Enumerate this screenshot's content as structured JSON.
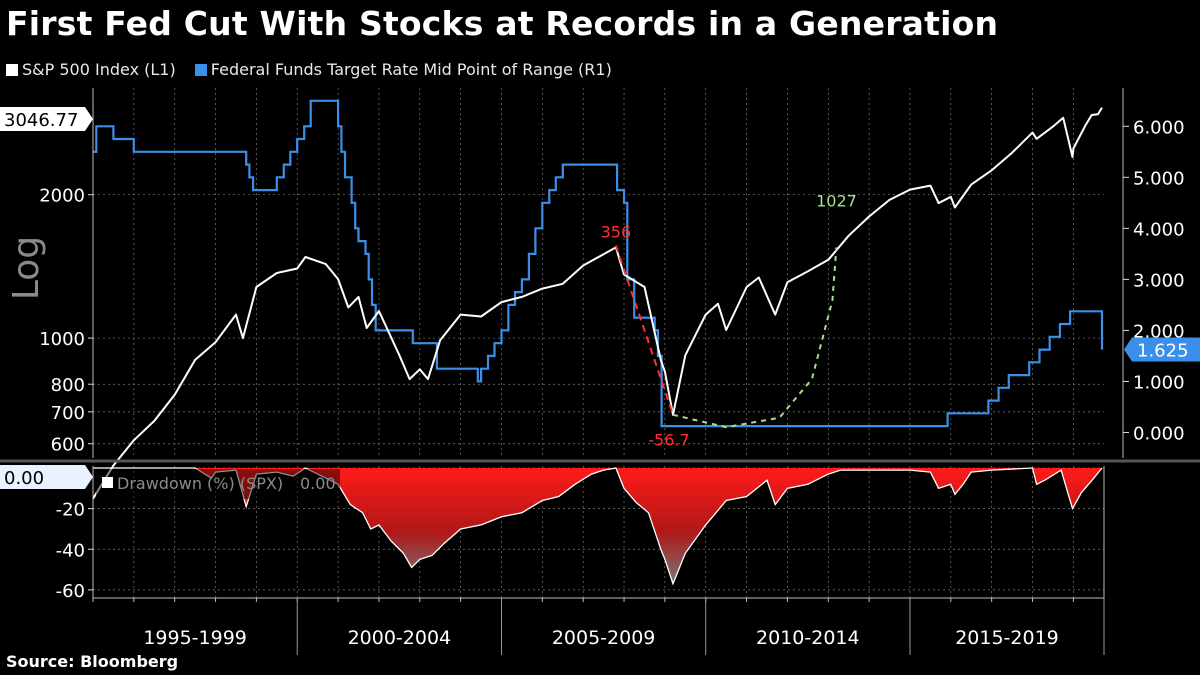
{
  "title": "First Fed Cut With Stocks at Records in a Generation",
  "source": "Source: Bloomberg",
  "colors": {
    "background": "#000000",
    "spx": "#ffffff",
    "fed": "#3b8fe8",
    "drawdown_fill": "#ff1a1a",
    "annotation_drop": "#ff3030",
    "annotation_recovery": "#a8e08a",
    "grid": "#7a7a7a"
  },
  "legend": [
    {
      "label": "S&P 500 Index  (L1)",
      "color": "#ffffff"
    },
    {
      "label": "Federal Funds Target Rate Mid Point of Range  (R1)",
      "color": "#3b8fe8"
    }
  ],
  "chart_data": [
    {
      "type": "line",
      "panel": "upper",
      "left_axis_label": "Log",
      "left_scale": "log",
      "left_ylim": [
        560,
        3350
      ],
      "left_ticks": [
        600,
        700,
        800,
        1000,
        2000
      ],
      "left_tick_labels": [
        "600",
        "700",
        "800",
        "1000",
        "2000"
      ],
      "right_ylim": [
        -0.5,
        6.75
      ],
      "right_ticks": [
        0,
        1,
        2,
        3,
        4,
        5,
        6
      ],
      "right_tick_labels": [
        "0.000",
        "1.000",
        "2.000",
        "3.000",
        "4.000",
        "5.000",
        "6.000"
      ],
      "x_range": [
        1995.0,
        2019.75
      ],
      "x_period_labels": [
        "1995-1999",
        "2000-2004",
        "2005-2009",
        "2010-2014",
        "2015-2019"
      ],
      "series": [
        {
          "name": "S&P 500 Index",
          "axis": "left",
          "last_value_label": "3046.77",
          "x": [
            1995.0,
            1995.5,
            1996.0,
            1996.5,
            1997.0,
            1997.5,
            1998.0,
            1998.5,
            1998.67,
            1999.0,
            1999.5,
            2000.0,
            2000.2,
            2000.7,
            2001.0,
            2001.25,
            2001.5,
            2001.7,
            2002.0,
            2002.5,
            2002.75,
            2003.0,
            2003.2,
            2003.5,
            2004.0,
            2004.5,
            2005.0,
            2005.5,
            2006.0,
            2006.5,
            2007.0,
            2007.5,
            2007.8,
            2008.0,
            2008.5,
            2008.9,
            2009.0,
            2009.2,
            2009.5,
            2010.0,
            2010.3,
            2010.5,
            2011.0,
            2011.3,
            2011.7,
            2012.0,
            2012.5,
            2013.0,
            2013.5,
            2014.0,
            2014.5,
            2015.0,
            2015.5,
            2015.7,
            2016.0,
            2016.1,
            2016.5,
            2017.0,
            2017.5,
            2018.0,
            2018.1,
            2018.5,
            2018.75,
            2018.98,
            2019.0,
            2019.3,
            2019.45,
            2019.6,
            2019.7
          ],
          "y": [
            460,
            540,
            610,
            670,
            760,
            900,
            980,
            1120,
            1000,
            1280,
            1370,
            1400,
            1480,
            1430,
            1330,
            1160,
            1220,
            1050,
            1140,
            920,
            820,
            860,
            820,
            990,
            1120,
            1110,
            1190,
            1220,
            1270,
            1300,
            1420,
            1500,
            1550,
            1360,
            1280,
            900,
            850,
            690,
            920,
            1120,
            1180,
            1040,
            1280,
            1340,
            1120,
            1310,
            1380,
            1460,
            1640,
            1800,
            1950,
            2050,
            2090,
            1920,
            1980,
            1880,
            2100,
            2250,
            2450,
            2700,
            2620,
            2780,
            2900,
            2400,
            2500,
            2800,
            2940,
            2950,
            3046.77
          ]
        },
        {
          "name": "Federal Funds Target Rate Mid Point of Range",
          "axis": "right",
          "last_value_label": "1.625",
          "step": true,
          "x": [
            1995.0,
            1995.08,
            1995.5,
            1996.0,
            1998.0,
            1998.75,
            1998.83,
            1998.92,
            1999.5,
            1999.67,
            1999.83,
            2000.0,
            2000.17,
            2000.33,
            2000.92,
            2001.0,
            2001.08,
            2001.17,
            2001.33,
            2001.42,
            2001.5,
            2001.67,
            2001.75,
            2001.83,
            2001.92,
            2002.83,
            2003.42,
            2004.42,
            2004.5,
            2004.67,
            2004.83,
            2005.0,
            2005.17,
            2005.33,
            2005.5,
            2005.67,
            2005.83,
            2006.0,
            2006.17,
            2006.33,
            2006.5,
            2007.67,
            2007.83,
            2008.0,
            2008.08,
            2008.25,
            2008.75,
            2008.83,
            2008.92,
            2015.92,
            2016.92,
            2017.17,
            2017.42,
            2017.92,
            2018.17,
            2018.42,
            2018.67,
            2018.92,
            2019.5,
            2019.7
          ],
          "y": [
            5.5,
            6.0,
            5.75,
            5.5,
            5.5,
            5.25,
            5.0,
            4.75,
            5.0,
            5.25,
            5.5,
            5.75,
            6.0,
            6.5,
            6.5,
            6.0,
            5.5,
            5.0,
            4.5,
            4.0,
            3.75,
            3.5,
            3.0,
            2.5,
            2.0,
            1.75,
            1.25,
            1.0,
            1.25,
            1.5,
            1.75,
            2.0,
            2.5,
            2.75,
            3.0,
            3.5,
            4.0,
            4.5,
            4.75,
            5.0,
            5.25,
            5.25,
            4.75,
            4.5,
            3.0,
            2.25,
            2.0,
            1.5,
            0.125,
            0.375,
            0.625,
            0.875,
            1.125,
            1.375,
            1.625,
            1.875,
            2.125,
            2.375,
            2.375,
            1.625
          ]
        }
      ],
      "annotations": [
        {
          "text": "356",
          "x": 2007.8,
          "y_left": 1625,
          "color": "#ff3030"
        },
        {
          "text": "1027",
          "x": 2013.2,
          "y_left": 1890,
          "color": "#a8e08a"
        },
        {
          "text": "-56.7",
          "x": 2009.1,
          "y_left": 595,
          "color": "#ff3030"
        }
      ],
      "drop_path": {
        "x": [
          2007.8,
          2009.2
        ],
        "y": [
          1565,
          690
        ]
      },
      "recovery_path": {
        "x": [
          2009.2,
          2010.5,
          2011.8,
          2012.6,
          2013.1,
          2013.2
        ],
        "y": [
          690,
          650,
          680,
          820,
          1200,
          1550
        ]
      }
    },
    {
      "type": "area",
      "panel": "lower",
      "series": [
        {
          "name": "Drawdown (%) (SPX)",
          "legend_value_label": "0.00",
          "last_value_label": "0.00",
          "x": [
            1995.0,
            1997.5,
            1997.9,
            1998.0,
            1998.5,
            1998.75,
            1999.0,
            1999.5,
            1999.9,
            2000.2,
            2000.5,
            2001.0,
            2001.3,
            2001.6,
            2001.8,
            2002.0,
            2002.3,
            2002.6,
            2002.8,
            2003.0,
            2003.3,
            2003.6,
            2004.0,
            2004.5,
            2005.0,
            2005.5,
            2006.0,
            2006.4,
            2006.8,
            2007.2,
            2007.5,
            2007.8,
            2008.0,
            2008.3,
            2008.6,
            2008.9,
            2009.0,
            2009.2,
            2009.5,
            2010.0,
            2010.5,
            2011.0,
            2011.5,
            2011.7,
            2012.0,
            2012.5,
            2013.0,
            2013.3,
            2014.0,
            2015.0,
            2015.5,
            2015.7,
            2016.0,
            2016.1,
            2016.3,
            2016.5,
            2017.0,
            2018.0,
            2018.1,
            2018.3,
            2018.7,
            2018.98,
            2019.2,
            2019.5,
            2019.7
          ],
          "y": [
            0,
            0,
            -5,
            -2,
            -1,
            -19,
            -3,
            -2,
            -4,
            0,
            -3,
            -8,
            -18,
            -22,
            -30,
            -28,
            -36,
            -42,
            -49,
            -45,
            -43,
            -37,
            -30,
            -28,
            -24,
            -22,
            -16,
            -14,
            -8,
            -3,
            -1,
            0,
            -10,
            -17,
            -22,
            -40,
            -45,
            -57,
            -42,
            -28,
            -16,
            -14,
            -6,
            -18,
            -10,
            -8,
            -3,
            -1,
            -1,
            -1,
            -2,
            -10,
            -8,
            -13,
            -8,
            -2,
            -1,
            0,
            -8,
            -6,
            -1,
            -20,
            -12,
            -5,
            0
          ],
          "ylim": [
            -64,
            1
          ],
          "ticks": [
            0,
            -20,
            -40,
            -60
          ],
          "tick_labels": [
            "0.00",
            "-20",
            "-40",
            "-60"
          ]
        }
      ]
    }
  ]
}
